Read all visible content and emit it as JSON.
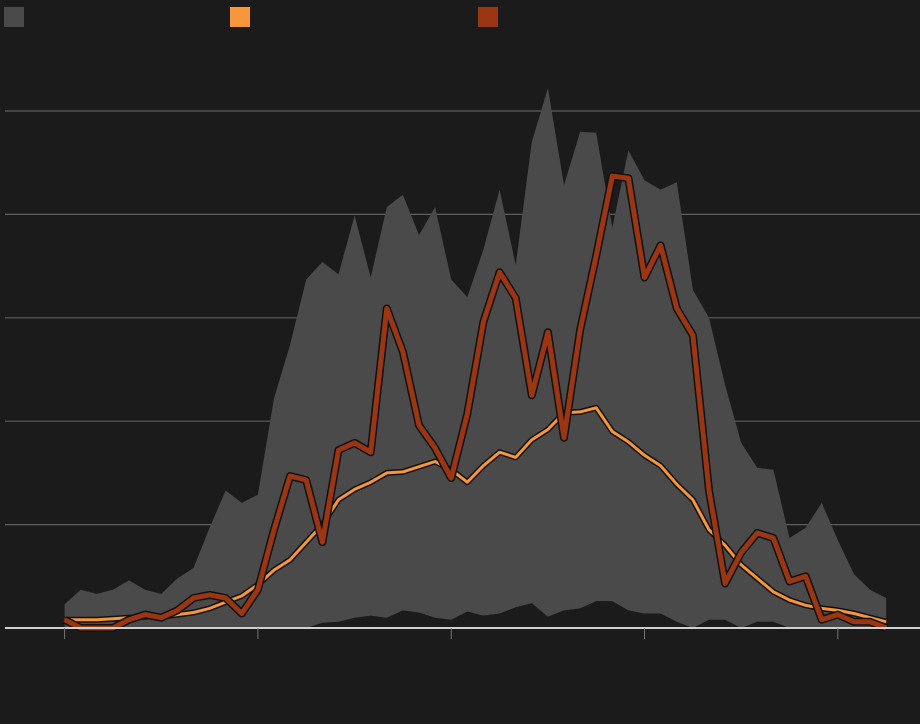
{
  "chart_data": {
    "type": "area-line",
    "x": [
      0,
      1,
      2,
      3,
      4,
      5,
      6,
      7,
      8,
      9,
      10,
      11,
      12,
      13,
      14,
      15,
      16,
      17,
      18,
      19,
      20,
      21,
      22,
      23,
      24,
      25,
      26,
      27,
      28,
      29,
      30,
      31,
      32,
      33,
      34,
      35,
      36,
      37,
      38,
      39,
      40,
      41,
      42,
      43,
      44,
      45,
      46,
      47,
      48,
      49,
      50,
      51
    ],
    "xlim": [
      -3.7,
      53.1
    ],
    "xticks": [
      0,
      12,
      24,
      36,
      48
    ],
    "ylim": [
      0,
      5.7
    ],
    "yticks": [
      0,
      1,
      2,
      3,
      4,
      5
    ],
    "grid": true,
    "series": [
      {
        "kind": "band",
        "color": "#4a4a4a",
        "values": [
          0.23,
          0.37,
          0.33,
          0.37,
          0.46,
          0.37,
          0.33,
          0.48,
          0.58,
          0.97,
          1.33,
          1.21,
          1.29,
          2.22,
          2.74,
          3.37,
          3.54,
          3.42,
          3.99,
          3.39,
          4.07,
          4.19,
          3.8,
          4.07,
          3.37,
          3.2,
          3.66,
          4.24,
          3.51,
          4.7,
          5.22,
          4.28,
          4.8,
          4.79,
          3.87,
          4.62,
          4.33,
          4.24,
          4.31,
          3.27,
          3.0,
          2.35,
          1.79,
          1.55,
          1.53,
          0.87,
          0.97,
          1.21,
          0.85,
          0.52,
          0.37,
          0.29
        ],
        "lower": [
          0,
          0,
          0,
          0,
          0,
          0,
          0,
          0,
          0,
          0,
          0,
          0,
          0,
          0,
          0,
          0,
          0.05,
          0.06,
          0.1,
          0.12,
          0.1,
          0.17,
          0.15,
          0.1,
          0.08,
          0.16,
          0.12,
          0.14,
          0.2,
          0.24,
          0.11,
          0.17,
          0.19,
          0.26,
          0.26,
          0.17,
          0.14,
          0.14,
          0.06,
          0,
          0.08,
          0.08,
          0,
          0.06,
          0.06,
          0,
          0,
          0,
          0,
          0,
          0,
          0
        ]
      },
      {
        "kind": "line",
        "color": "#f7953a",
        "width": 3,
        "values": [
          0.08,
          0.08,
          0.08,
          0.09,
          0.1,
          0.11,
          0.11,
          0.13,
          0.15,
          0.19,
          0.25,
          0.31,
          0.42,
          0.56,
          0.66,
          0.83,
          1.0,
          1.24,
          1.34,
          1.41,
          1.5,
          1.51,
          1.56,
          1.61,
          1.53,
          1.41,
          1.57,
          1.7,
          1.65,
          1.82,
          1.92,
          2.08,
          2.09,
          2.13,
          1.9,
          1.8,
          1.67,
          1.57,
          1.39,
          1.24,
          0.95,
          0.8,
          0.61,
          0.48,
          0.35,
          0.27,
          0.22,
          0.19,
          0.17,
          0.14,
          0.1,
          0.06
        ]
      },
      {
        "kind": "line",
        "color": "#9c3512",
        "width": 5,
        "values": [
          0.08,
          0,
          0,
          0,
          0.08,
          0.13,
          0.1,
          0.17,
          0.29,
          0.32,
          0.29,
          0.14,
          0.37,
          0.95,
          1.47,
          1.43,
          0.83,
          1.72,
          1.79,
          1.7,
          3.09,
          2.67,
          1.96,
          1.74,
          1.45,
          2.07,
          2.96,
          3.44,
          3.19,
          2.25,
          2.86,
          1.84,
          2.88,
          3.6,
          4.37,
          4.35,
          3.39,
          3.7,
          3.09,
          2.83,
          1.33,
          0.43,
          0.73,
          0.92,
          0.87,
          0.45,
          0.5,
          0.08,
          0.13,
          0.06,
          0.06,
          0
        ]
      }
    ]
  }
}
